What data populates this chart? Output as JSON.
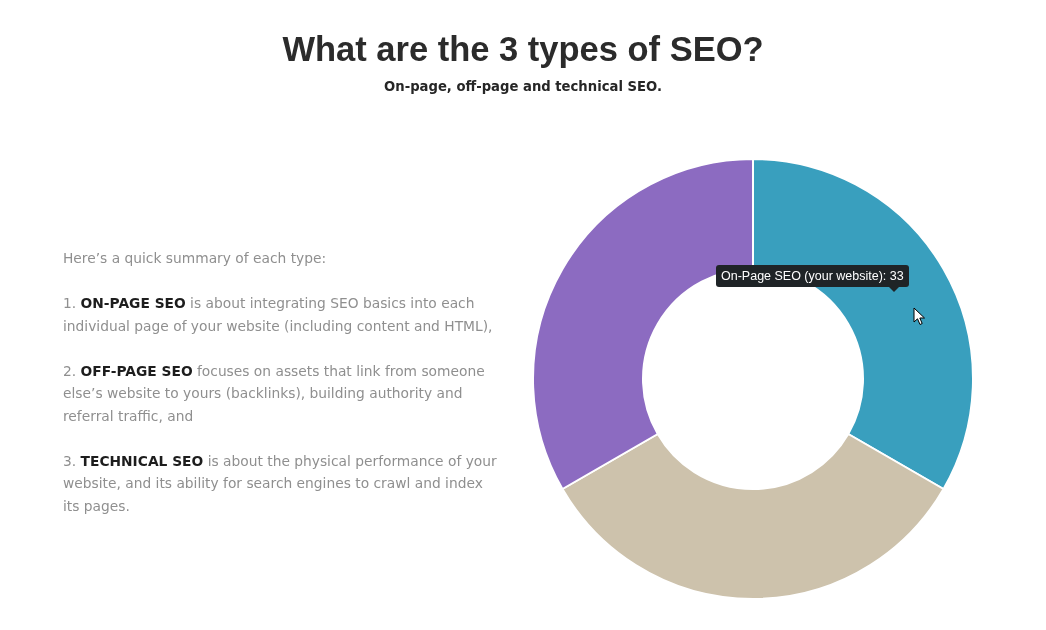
{
  "chart_data": [
    {
      "type": "other",
      "annotations": [
        "Here’s a quick summary of each type:",
        "1. ON-PAGE SEO is about integrating SEO basics into each individual page of your website (including content and HTML),",
        "2. OFF-PAGE SEO focuses on assets that link from someone else’s website to yours (backlinks), building authority and referral traffic, and",
        "3. TECHNICAL SEO is about the physical performance of your website, and its ability for search engines to crawl and index its pages."
      ]
    },
    {
      "type": "donut",
      "title": "What are the 3 types of SEO?",
      "subtitle": "On-page, off-page and technical SEO.",
      "categories": [
        null,
        null,
        null
      ],
      "values": [
        33,
        33,
        33
      ],
      "colors": [
        "#399fbe",
        "#cdc2ac",
        "#8c6bc1"
      ],
      "annotations": [
        "On-Page SEO (your website): 33"
      ]
    }
  ]
}
